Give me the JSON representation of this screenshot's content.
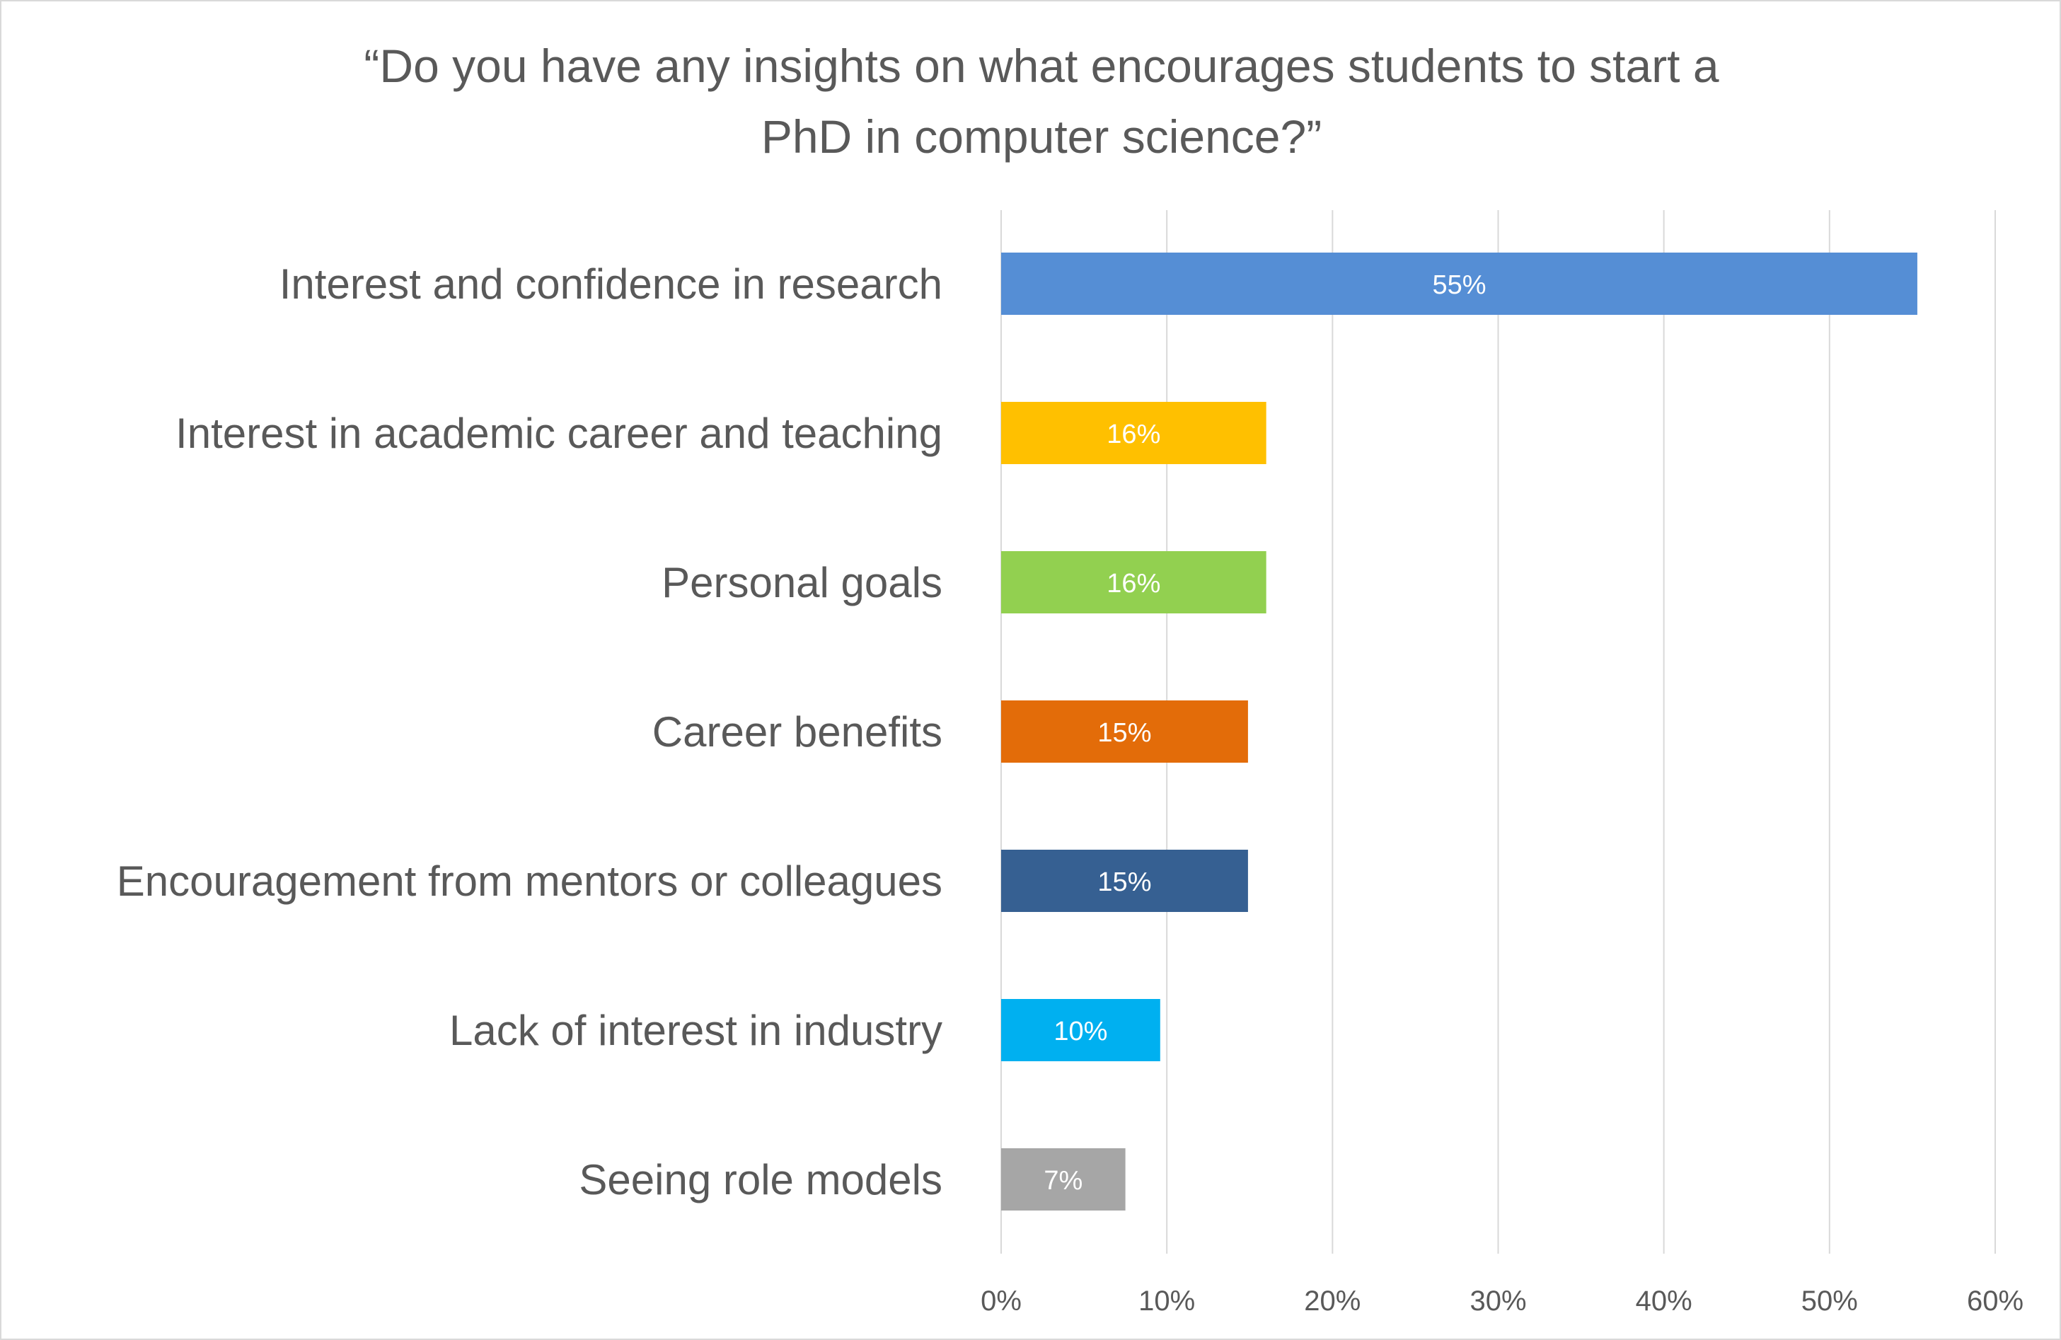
{
  "chart_data": {
    "type": "bar",
    "orientation": "horizontal",
    "title_lines": [
      "“Do you have any insights on what encourages students to start a",
      "PhD in computer science?”"
    ],
    "categories": [
      "Interest and confidence in research",
      "Interest in academic career and teaching",
      "Personal goals",
      "Career benefits",
      "Encouragement from mentors or colleagues",
      "Lack of interest in industry",
      "Seeing role models"
    ],
    "values": [
      55.3,
      16,
      16,
      14.9,
      14.9,
      9.6,
      7.5
    ],
    "data_labels": [
      "55%",
      "16%",
      "16%",
      "15%",
      "15%",
      "10%",
      "7%"
    ],
    "colors": [
      "#558ED5",
      "#FFC000",
      "#92D050",
      "#E36C09",
      "#366092",
      "#00B0F0",
      "#A6A6A6"
    ],
    "xlim": [
      0,
      60
    ],
    "x_ticks": [
      0,
      10,
      20,
      30,
      40,
      50,
      60
    ],
    "x_tick_labels": [
      "0%",
      "10%",
      "20%",
      "30%",
      "40%",
      "50%",
      "60%"
    ],
    "grid": "vertical",
    "legend": "none",
    "xlabel": "",
    "ylabel": ""
  }
}
